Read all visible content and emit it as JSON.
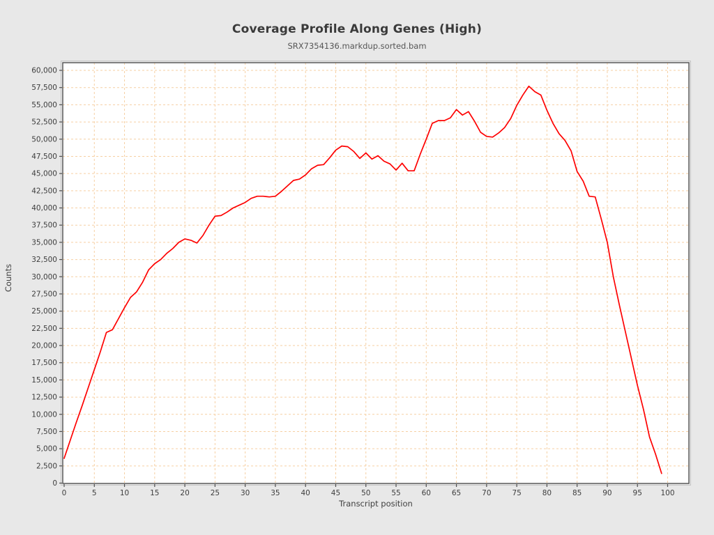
{
  "chart_data": {
    "type": "line",
    "title": "Coverage Profile Along Genes (High)",
    "subtitle": "SRX7354136.markdup.sorted.bam",
    "xlabel": "Transcript position",
    "ylabel": "Counts",
    "series_name": "SRX7354136.markdup.sorted.bam",
    "x_axis": {
      "min": 0,
      "max": 100,
      "tick_step": 5,
      "ticks": [
        0,
        5,
        10,
        15,
        20,
        25,
        30,
        35,
        40,
        45,
        50,
        55,
        60,
        65,
        70,
        75,
        80,
        85,
        90,
        95,
        100
      ]
    },
    "y_axis": {
      "min": 0,
      "max": 60000,
      "tick_step": 2500,
      "ticks": [
        0,
        2500,
        5000,
        7500,
        10000,
        12500,
        15000,
        17500,
        20000,
        22500,
        25000,
        27500,
        30000,
        32500,
        35000,
        37500,
        40000,
        42500,
        45000,
        47500,
        50000,
        52500,
        55000,
        57500,
        60000
      ]
    },
    "x": [
      0,
      1,
      2,
      3,
      4,
      5,
      6,
      7,
      8,
      9,
      10,
      11,
      12,
      13,
      14,
      15,
      16,
      17,
      18,
      19,
      20,
      21,
      22,
      23,
      24,
      25,
      26,
      27,
      28,
      29,
      30,
      31,
      32,
      33,
      34,
      35,
      36,
      37,
      38,
      39,
      40,
      41,
      42,
      43,
      44,
      45,
      46,
      47,
      48,
      49,
      50,
      51,
      52,
      53,
      54,
      55,
      56,
      57,
      58,
      59,
      60,
      61,
      62,
      63,
      64,
      65,
      66,
      67,
      68,
      69,
      70,
      71,
      72,
      73,
      74,
      75,
      76,
      77,
      78,
      79,
      80,
      81,
      82,
      83,
      84,
      85,
      86,
      87,
      88,
      89,
      90,
      91,
      92,
      93,
      94,
      95,
      96,
      97,
      98,
      99
    ],
    "y": [
      3600,
      6200,
      8800,
      11300,
      13900,
      16500,
      19100,
      21900,
      22300,
      23900,
      25500,
      27000,
      27800,
      29200,
      31000,
      31900,
      32500,
      33400,
      34100,
      35000,
      35500,
      35300,
      34900,
      36000,
      37500,
      38800,
      38900,
      39400,
      40000,
      40400,
      40800,
      41400,
      41700,
      41700,
      41600,
      41700,
      42400,
      43200,
      44000,
      44200,
      44800,
      45700,
      46200,
      46300,
      47300,
      48400,
      49000,
      48900,
      48200,
      47200,
      48000,
      47100,
      47600,
      46800,
      46400,
      45500,
      46500,
      45400,
      45400,
      47800,
      50000,
      52300,
      52700,
      52700,
      53100,
      54300,
      53500,
      54000,
      52600,
      51000,
      50400,
      50300,
      50900,
      51700,
      53000,
      54900,
      56400,
      57700,
      56900,
      56400,
      54200,
      52300,
      50800,
      49800,
      48300,
      45300,
      43900,
      41700,
      41600,
      38400,
      35000,
      30000,
      25900,
      22000,
      18100,
      14200,
      10700,
      6700,
      4200,
      1400
    ],
    "grid": true,
    "legend_position": "none",
    "line_color": "#fe0000",
    "grid_color": "#f6cfa2",
    "plot_bg_color": "#ffffff",
    "page_bg_color": "#e8e8e8",
    "frame_color": "#4e4e4e",
    "bevel_color": "#c4c4c4",
    "tick_label_color": "#3d3d3d"
  }
}
